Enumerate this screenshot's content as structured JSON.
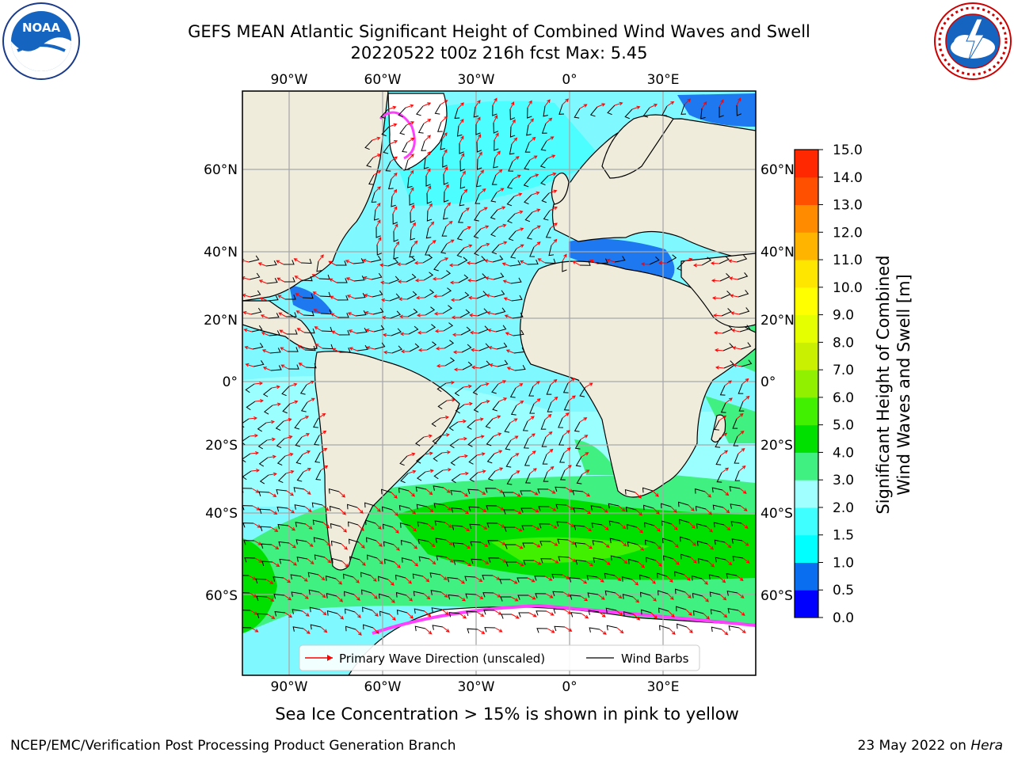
{
  "title": {
    "line1": "GEFS MEAN Atlantic Significant Height of Combined Wind Waves and Swell",
    "line2": "20220522 t00z 216h fcst   Max: 5.45"
  },
  "axes": {
    "lon_ticks": [
      "90°W",
      "60°W",
      "30°W",
      "0°",
      "30°E"
    ],
    "lat_ticks": [
      "60°N",
      "40°N",
      "20°N",
      "0°",
      "20°S",
      "40°S",
      "60°S"
    ]
  },
  "legend": {
    "wave_dir": "Primary Wave Direction (unscaled)",
    "wind_barbs": "Wind Barbs"
  },
  "colorbar": {
    "label_line1": "Significant Height of Combined",
    "label_line2": "Wind Waves and Swell [m]",
    "ticks": [
      "0.0",
      "0.5",
      "1.0",
      "1.5",
      "2.0",
      "3.0",
      "4.0",
      "5.0",
      "6.0",
      "7.0",
      "8.0",
      "9.0",
      "10.0",
      "11.0",
      "12.0",
      "13.0",
      "14.0",
      "15.0"
    ],
    "colors": [
      "#0000ff",
      "#0a6ef0",
      "#00ffff",
      "#40ffff",
      "#a0ffff",
      "#40f080",
      "#00e000",
      "#40f000",
      "#90f000",
      "#c8f000",
      "#e6ff00",
      "#ffff00",
      "#ffe600",
      "#ffb400",
      "#ff8c00",
      "#ff5000",
      "#ff2800",
      "#ff0000"
    ]
  },
  "colors": {
    "land": "#efecdc",
    "ocean_low": "#a0ffff",
    "ocean_mid": "#40ffff",
    "wave_band": "#40f080",
    "wave_peak": "#00e000",
    "arrow": "#ff0000",
    "barb": "#000000"
  },
  "ice_note": "Sea Ice Concentration > 15% is shown in pink to yellow",
  "footer": {
    "left": "NCEP/EMC/Verification Post Processing Product Generation Branch",
    "right_date": "23 May 2022 on",
    "right_host": "Hera"
  },
  "logos": {
    "noaa_text": "NOAA",
    "noaa_icon": "noaa-seal-icon",
    "nws_icon": "nws-seal-icon"
  }
}
